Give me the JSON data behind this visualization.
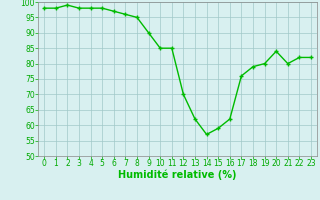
{
  "x": [
    0,
    1,
    2,
    3,
    4,
    5,
    6,
    7,
    8,
    9,
    10,
    11,
    12,
    13,
    14,
    15,
    16,
    17,
    18,
    19,
    20,
    21,
    22,
    23
  ],
  "y": [
    98,
    98,
    99,
    98,
    98,
    98,
    97,
    96,
    95,
    90,
    85,
    85,
    70,
    62,
    57,
    59,
    62,
    76,
    79,
    80,
    84,
    80,
    82,
    82
  ],
  "line_color": "#00bb00",
  "marker_color": "#00bb00",
  "bg_color": "#d8f0f0",
  "grid_color": "#a0c8c8",
  "xlabel": "Humidité relative (%)",
  "xlabel_color": "#00bb00",
  "ylim": [
    50,
    100
  ],
  "xlim": [
    -0.5,
    23.5
  ],
  "yticks": [
    50,
    55,
    60,
    65,
    70,
    75,
    80,
    85,
    90,
    95,
    100
  ],
  "xticks": [
    0,
    1,
    2,
    3,
    4,
    5,
    6,
    7,
    8,
    9,
    10,
    11,
    12,
    13,
    14,
    15,
    16,
    17,
    18,
    19,
    20,
    21,
    22,
    23
  ],
  "tick_label_color": "#00aa00",
  "tick_label_fontsize": 5.5,
  "xlabel_fontsize": 7,
  "linewidth": 1.0,
  "markersize": 2.5,
  "marker": "+"
}
